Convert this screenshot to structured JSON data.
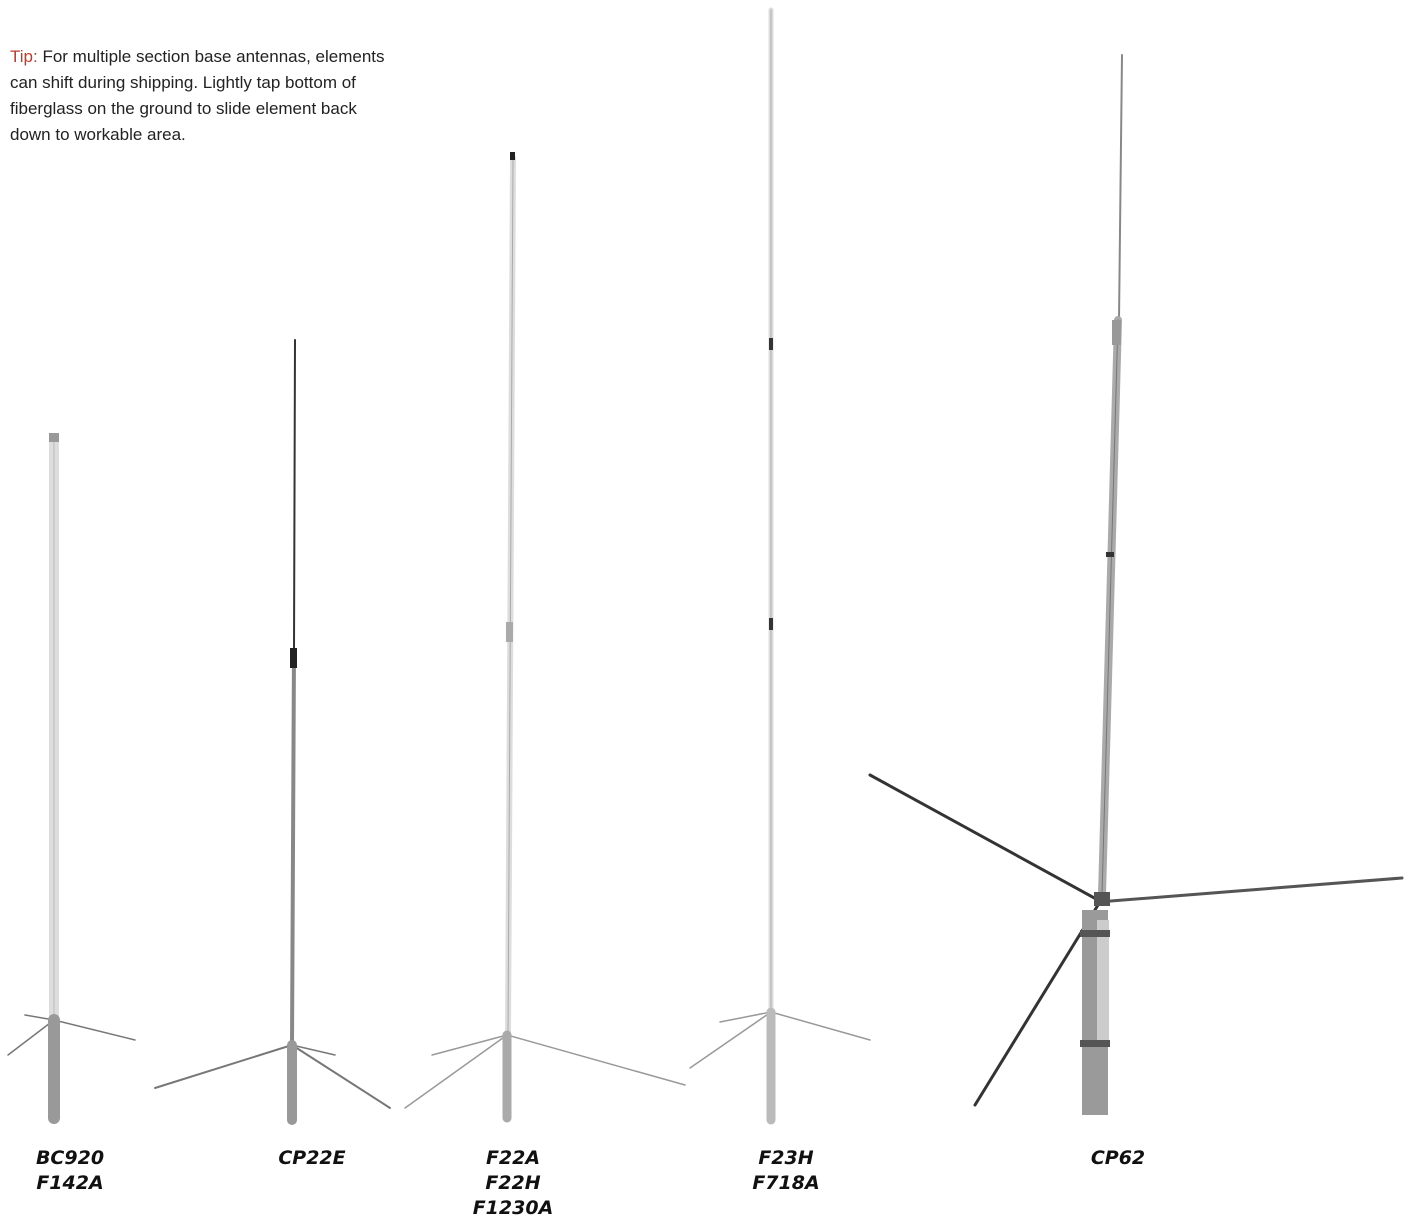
{
  "tip": {
    "label": "Tip:",
    "lines": [
      "For multiple section base antennas, elements",
      "can shift during shipping. Lightly tap bottom of",
      "fiberglass on the ground to slide element back",
      "down to workable area."
    ]
  },
  "antennas": [
    {
      "labels": [
        "BC920",
        "F142A"
      ]
    },
    {
      "labels": [
        "CP22E"
      ]
    },
    {
      "labels": [
        "F22A",
        "F22H",
        "F1230A"
      ]
    },
    {
      "labels": [
        "F23H",
        "F718A"
      ]
    },
    {
      "labels": [
        "CP62"
      ]
    }
  ]
}
